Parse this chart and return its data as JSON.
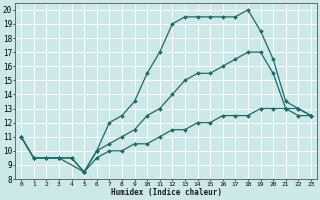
{
  "xlabel": "Humidex (Indice chaleur)",
  "bg_color": "#cde8e8",
  "grid_color": "#ffffff",
  "line_color": "#1a6b6b",
  "xlim": [
    -0.5,
    23.5
  ],
  "ylim": [
    8,
    20.5
  ],
  "xticks": [
    0,
    1,
    2,
    3,
    4,
    5,
    6,
    7,
    8,
    9,
    10,
    11,
    12,
    13,
    14,
    15,
    16,
    17,
    18,
    19,
    20,
    21,
    22,
    23
  ],
  "yticks": [
    8,
    9,
    10,
    11,
    12,
    13,
    14,
    15,
    16,
    17,
    18,
    19,
    20
  ],
  "series": [
    {
      "x": [
        0,
        1,
        2,
        3,
        4,
        5,
        6,
        7,
        8,
        9,
        10,
        11,
        12,
        13,
        14,
        15,
        16,
        17,
        18,
        19,
        20,
        21,
        22,
        23
      ],
      "y": [
        11.0,
        9.5,
        9.5,
        9.5,
        9.5,
        8.5,
        9.5,
        10.0,
        10.0,
        10.5,
        10.5,
        11.0,
        11.5,
        11.5,
        12.0,
        12.0,
        12.5,
        12.5,
        12.5,
        13.0,
        13.0,
        13.0,
        12.5,
        12.5
      ]
    },
    {
      "x": [
        0,
        1,
        2,
        3,
        4,
        5,
        6,
        7,
        8,
        9,
        10,
        11,
        12,
        13,
        14,
        15,
        16,
        17,
        18,
        19,
        20,
        21,
        22,
        23
      ],
      "y": [
        11.0,
        9.5,
        9.5,
        9.5,
        9.5,
        8.5,
        10.0,
        10.5,
        11.0,
        11.5,
        12.5,
        13.0,
        14.0,
        15.0,
        15.5,
        15.5,
        16.0,
        16.5,
        17.0,
        17.0,
        15.5,
        13.0,
        13.0,
        12.5
      ]
    },
    {
      "x": [
        0,
        1,
        3,
        5,
        6,
        7,
        8,
        9,
        10,
        11,
        12,
        13,
        14,
        15,
        16,
        17,
        18,
        19,
        20,
        21,
        22,
        23
      ],
      "y": [
        11.0,
        9.5,
        9.5,
        8.5,
        10.0,
        12.0,
        12.5,
        13.5,
        15.5,
        17.0,
        19.0,
        19.5,
        19.5,
        19.5,
        19.5,
        19.5,
        20.0,
        18.5,
        16.5,
        13.5,
        13.0,
        12.5
      ]
    }
  ]
}
